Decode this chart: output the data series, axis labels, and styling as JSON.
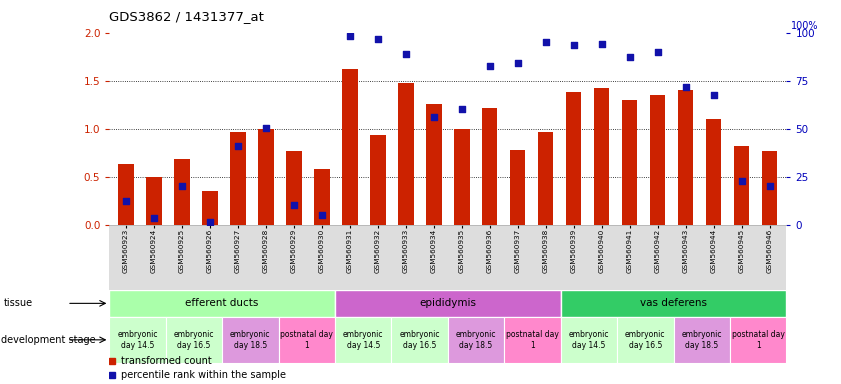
{
  "title": "GDS3862 / 1431377_at",
  "samples": [
    "GSM560923",
    "GSM560924",
    "GSM560925",
    "GSM560926",
    "GSM560927",
    "GSM560928",
    "GSM560929",
    "GSM560930",
    "GSM560931",
    "GSM560932",
    "GSM560933",
    "GSM560934",
    "GSM560935",
    "GSM560936",
    "GSM560937",
    "GSM560938",
    "GSM560939",
    "GSM560940",
    "GSM560941",
    "GSM560942",
    "GSM560943",
    "GSM560944",
    "GSM560945",
    "GSM560946"
  ],
  "bar_values": [
    0.63,
    0.5,
    0.68,
    0.35,
    0.97,
    1.0,
    0.77,
    0.58,
    1.62,
    0.93,
    1.48,
    1.26,
    1.0,
    1.22,
    0.78,
    0.97,
    1.38,
    1.42,
    1.3,
    1.35,
    1.4,
    1.1,
    0.82,
    0.77
  ],
  "dot_values_pct": [
    12.5,
    3.5,
    20.0,
    1.5,
    41.0,
    50.5,
    10.0,
    5.0,
    98.5,
    96.5,
    89.0,
    56.0,
    60.0,
    82.5,
    84.0,
    95.0,
    93.5,
    94.0,
    87.5,
    90.0,
    71.5,
    67.5,
    22.5,
    20.0
  ],
  "bar_color": "#CC2200",
  "dot_color": "#1111AA",
  "ylim_left": [
    0,
    2
  ],
  "ylim_right": [
    0,
    100
  ],
  "yticks_left": [
    0,
    0.5,
    1.0,
    1.5,
    2.0
  ],
  "yticks_right": [
    0,
    25,
    50,
    75,
    100
  ],
  "tissues": [
    {
      "label": "efferent ducts",
      "start": 0,
      "end": 8,
      "color": "#AAFFAA"
    },
    {
      "label": "epididymis",
      "start": 8,
      "end": 16,
      "color": "#CC66CC"
    },
    {
      "label": "vas deferens",
      "start": 16,
      "end": 24,
      "color": "#33CC66"
    }
  ],
  "dev_stages": [
    {
      "label": "embryonic\nday 14.5",
      "start": 0,
      "end": 2,
      "color": "#CCFFCC"
    },
    {
      "label": "embryonic\nday 16.5",
      "start": 2,
      "end": 4,
      "color": "#CCFFCC"
    },
    {
      "label": "embryonic\nday 18.5",
      "start": 4,
      "end": 6,
      "color": "#DD99DD"
    },
    {
      "label": "postnatal day\n1",
      "start": 6,
      "end": 8,
      "color": "#FF88CC"
    },
    {
      "label": "embryonic\nday 14.5",
      "start": 8,
      "end": 10,
      "color": "#CCFFCC"
    },
    {
      "label": "embryonic\nday 16.5",
      "start": 10,
      "end": 12,
      "color": "#CCFFCC"
    },
    {
      "label": "embryonic\nday 18.5",
      "start": 12,
      "end": 14,
      "color": "#DD99DD"
    },
    {
      "label": "postnatal day\n1",
      "start": 14,
      "end": 16,
      "color": "#FF88CC"
    },
    {
      "label": "embryonic\nday 14.5",
      "start": 16,
      "end": 18,
      "color": "#CCFFCC"
    },
    {
      "label": "embryonic\nday 16.5",
      "start": 18,
      "end": 20,
      "color": "#CCFFCC"
    },
    {
      "label": "embryonic\nday 18.5",
      "start": 20,
      "end": 22,
      "color": "#DD99DD"
    },
    {
      "label": "postnatal day\n1",
      "start": 22,
      "end": 24,
      "color": "#FF88CC"
    }
  ],
  "legend_bar_label": "transformed count",
  "legend_dot_label": "percentile rank within the sample",
  "tissue_label": "tissue",
  "dev_stage_label": "development stage",
  "bg_color": "#FFFFFF",
  "tick_color_left": "#CC2200",
  "tick_color_right": "#0000BB",
  "right_axis_top_label": "100%"
}
